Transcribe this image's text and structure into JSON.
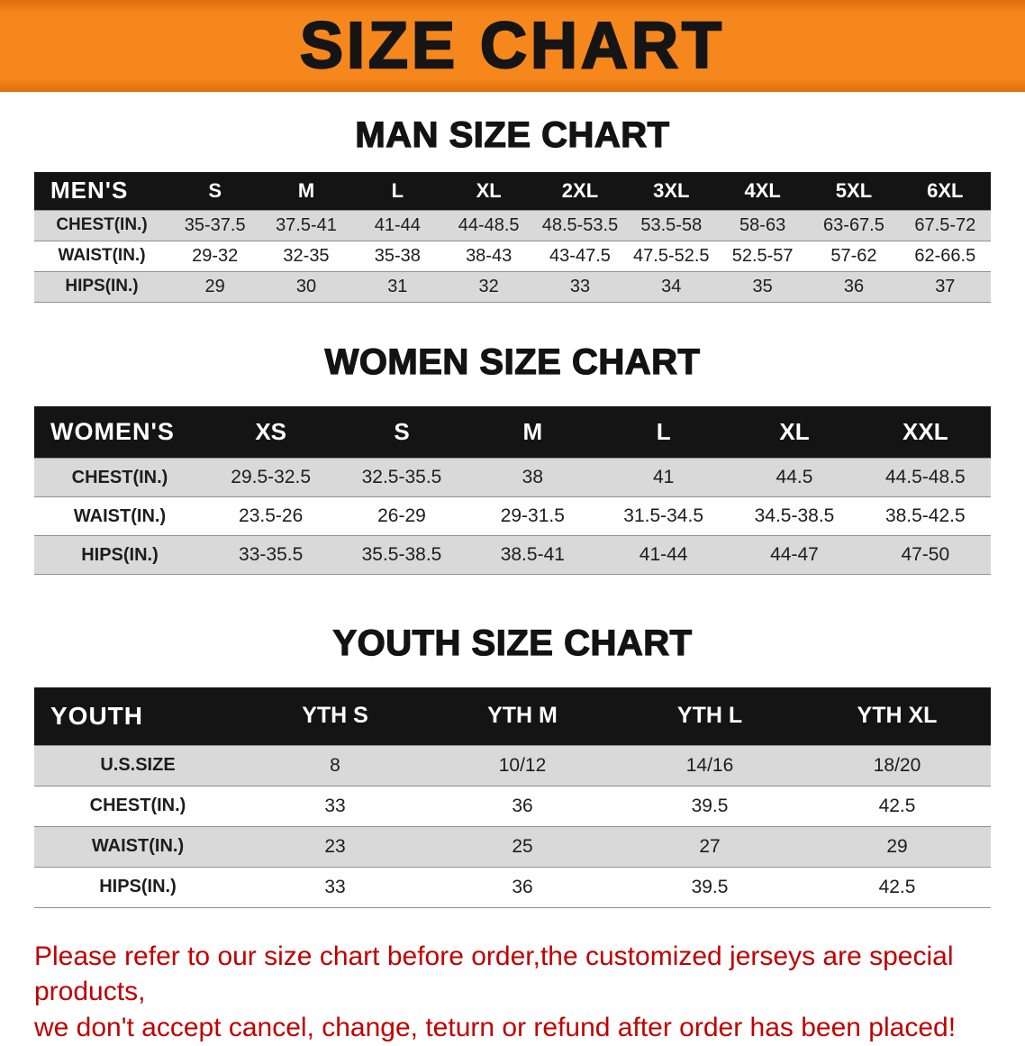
{
  "banner": {
    "title": "SIZE CHART",
    "bg_color": "#F6871C",
    "text_color": "#151515"
  },
  "footer": {
    "color": "#C00000",
    "lines": [
      "Please refer to our size chart before order,the customized jerseys are special products,",
      "we don't accept cancel, change, teturn or refund after order has been placed!"
    ]
  },
  "chart_data": [
    {
      "type": "table",
      "title": "MAN SIZE CHART",
      "corner_label": "MEN'S",
      "columns": [
        "S",
        "M",
        "L",
        "XL",
        "2XL",
        "3XL",
        "4XL",
        "5XL",
        "6XL"
      ],
      "rows": [
        {
          "label": "CHEST(IN.)",
          "values": [
            "35-37.5",
            "37.5-41",
            "41-44",
            "44-48.5",
            "48.5-53.5",
            "53.5-58",
            "58-63",
            "63-67.5",
            "67.5-72"
          ]
        },
        {
          "label": "WAIST(IN.)",
          "values": [
            "29-32",
            "32-35",
            "35-38",
            "38-43",
            "43-47.5",
            "47.5-52.5",
            "52.5-57",
            "57-62",
            "62-66.5"
          ]
        },
        {
          "label": "HIPS(IN.)",
          "values": [
            "29",
            "30",
            "31",
            "32",
            "33",
            "34",
            "35",
            "36",
            "37"
          ]
        }
      ]
    },
    {
      "type": "table",
      "title": "WOMEN SIZE CHART",
      "corner_label": "WOMEN'S",
      "columns": [
        "XS",
        "S",
        "M",
        "L",
        "XL",
        "XXL"
      ],
      "rows": [
        {
          "label": "CHEST(IN.)",
          "values": [
            "29.5-32.5",
            "32.5-35.5",
            "38",
            "41",
            "44.5",
            "44.5-48.5"
          ]
        },
        {
          "label": "WAIST(IN.)",
          "values": [
            "23.5-26",
            "26-29",
            "29-31.5",
            "31.5-34.5",
            "34.5-38.5",
            "38.5-42.5"
          ]
        },
        {
          "label": "HIPS(IN.)",
          "values": [
            "33-35.5",
            "35.5-38.5",
            "38.5-41",
            "41-44",
            "44-47",
            "47-50"
          ]
        }
      ]
    },
    {
      "type": "table",
      "title": "YOUTH SIZE CHART",
      "corner_label": "YOUTH",
      "columns": [
        "YTH S",
        "YTH M",
        "YTH L",
        "YTH XL"
      ],
      "rows": [
        {
          "label": "U.S.SIZE",
          "values": [
            "8",
            "10/12",
            "14/16",
            "18/20"
          ]
        },
        {
          "label": "CHEST(IN.)",
          "values": [
            "33",
            "36",
            "39.5",
            "42.5"
          ]
        },
        {
          "label": "WAIST(IN.)",
          "values": [
            "23",
            "25",
            "27",
            "29"
          ]
        },
        {
          "label": "HIPS(IN.)",
          "values": [
            "33",
            "36",
            "39.5",
            "42.5"
          ]
        }
      ]
    }
  ]
}
